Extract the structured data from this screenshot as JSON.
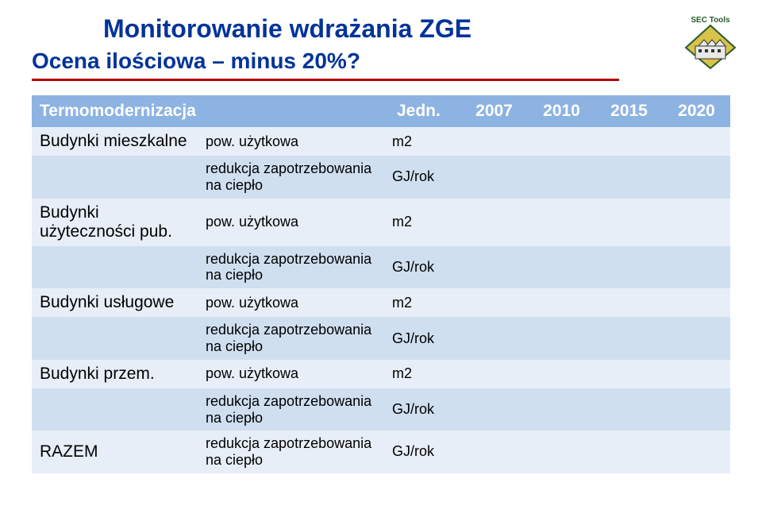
{
  "title": "Monitorowanie wdrażania ZGE",
  "subtitle": "Ocena ilościowa – minus 20%?",
  "badge": {
    "label_top": "SEC Tools",
    "diamond_fill": "#d8c24a",
    "diamond_stroke": "#2a5a2a",
    "house_fill": "#e8e8e8",
    "house_stroke": "#333333"
  },
  "colors": {
    "title": "#003399",
    "rule": "#b30000",
    "header_bg": "#8db3e2",
    "header_text": "#ffffff",
    "row_odd": "#e8eef7",
    "row_even": "#cfdff0",
    "text": "#000000",
    "background": "#ffffff"
  },
  "table": {
    "header": {
      "col1": "Termomodernizacja",
      "col2": "",
      "col3": "Jedn.",
      "years": [
        "2007",
        "2010",
        "2015",
        "2020"
      ]
    },
    "rows": [
      {
        "label": "Budynki mieszkalne",
        "desc": "pow. użytkowa",
        "unit": "m2",
        "shade": "odd"
      },
      {
        "label": "",
        "desc": "redukcja zapotrzebowania na ciepło",
        "unit": "GJ/rok",
        "shade": "even"
      },
      {
        "label": "Budynki użyteczności pub.",
        "desc": "pow. użytkowa",
        "unit": "m2",
        "shade": "odd"
      },
      {
        "label": "",
        "desc": "redukcja zapotrzebowania na ciepło",
        "unit": "GJ/rok",
        "shade": "even"
      },
      {
        "label": "Budynki usługowe",
        "desc": "pow. użytkowa",
        "unit": "m2",
        "shade": "odd"
      },
      {
        "label": "",
        "desc": "redukcja zapotrzebowania na ciepło",
        "unit": "GJ/rok",
        "shade": "even"
      },
      {
        "label": "Budynki przem.",
        "desc": "pow. użytkowa",
        "unit": "m2",
        "shade": "odd"
      },
      {
        "label": "",
        "desc": "redukcja zapotrzebowania na ciepło",
        "unit": "GJ/rok",
        "shade": "even"
      },
      {
        "label": "RAZEM",
        "desc": "redukcja zapotrzebowania na ciepło",
        "unit": "GJ/rok",
        "shade": "odd"
      }
    ]
  }
}
